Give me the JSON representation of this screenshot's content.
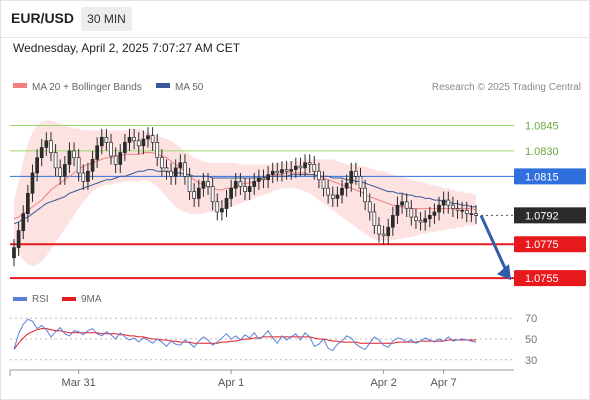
{
  "header": {
    "pair": "EUR/USD",
    "timeframe": "30 MIN",
    "timestamp": "Wednesday, April 2, 2025 7:07:27 AM CET"
  },
  "legend": {
    "items": [
      {
        "label": "MA 20 + Bollinger Bands",
        "color": "#f08080"
      },
      {
        "label": "MA 50",
        "color": "#3b5998"
      }
    ],
    "credit": "Research © 2025 Trading Central"
  },
  "chart_data": [
    {
      "type": "candlestick",
      "ylim": [
        1.0748,
        1.086
      ],
      "levels": [
        {
          "value": 1.0845,
          "label": "1.0845",
          "kind": "resistance",
          "color": "#9bd66b"
        },
        {
          "value": 1.083,
          "label": "1.0830",
          "kind": "resistance",
          "color": "#9bd66b"
        },
        {
          "value": 1.0815,
          "label": "1.0815",
          "kind": "pivot",
          "color": "#2f6fde"
        },
        {
          "value": 1.0775,
          "label": "1.0775",
          "kind": "support",
          "color": "#e8191c"
        },
        {
          "value": 1.0755,
          "label": "1.0755",
          "kind": "support",
          "color": "#e8191c"
        }
      ],
      "last_price": {
        "value": 1.0792,
        "label": "1.0792",
        "color": "#2b2b2b"
      },
      "forecast": {
        "from": 1.0792,
        "to": 1.0755,
        "color": "#2f5da8"
      },
      "close": [
        1.0773,
        1.0783,
        1.0793,
        1.0805,
        1.0817,
        1.0826,
        1.0832,
        1.0836,
        1.0829,
        1.082,
        1.0815,
        1.0822,
        1.083,
        1.0826,
        1.0817,
        1.0812,
        1.0818,
        1.0825,
        1.0833,
        1.0838,
        1.0835,
        1.0827,
        1.0822,
        1.0829,
        1.0835,
        1.0838,
        1.0836,
        1.0833,
        1.0837,
        1.0839,
        1.0835,
        1.0826,
        1.082,
        1.0818,
        1.0815,
        1.082,
        1.0823,
        1.0815,
        1.0806,
        1.0802,
        1.0808,
        1.0812,
        1.0809,
        1.08,
        1.0794,
        1.0796,
        1.0802,
        1.0808,
        1.0812,
        1.0809,
        1.0806,
        1.0809,
        1.0812,
        1.0814,
        1.0813,
        1.0816,
        1.0818,
        1.0817,
        1.0819,
        1.0818,
        1.0819,
        1.0821,
        1.082,
        1.0823,
        1.0822,
        1.0818,
        1.0813,
        1.0808,
        1.0804,
        1.0802,
        1.0804,
        1.0808,
        1.0811,
        1.0818,
        1.0815,
        1.0808,
        1.08,
        1.0794,
        1.0786,
        1.0781,
        1.078,
        1.0785,
        1.0792,
        1.0798,
        1.08,
        1.0796,
        1.0791,
        1.0789,
        1.0788,
        1.079,
        1.0792,
        1.0794,
        1.0798,
        1.0801,
        1.0798,
        1.0796,
        1.0795,
        1.0795,
        1.0793,
        1.0793,
        1.0792
      ],
      "ma50": [
        1.0787,
        1.0788,
        1.079,
        1.0791,
        1.0793,
        1.0795,
        1.0797,
        1.0799,
        1.08,
        1.0801,
        1.0802,
        1.0803,
        1.0805,
        1.0806,
        1.0807,
        1.0808,
        1.0809,
        1.081,
        1.0811,
        1.0812,
        1.0813,
        1.0813,
        1.0814,
        1.0815,
        1.0815,
        1.0816,
        1.0817,
        1.0818,
        1.0818,
        1.0819,
        1.0819,
        1.0818,
        1.0818,
        1.0818,
        1.0817,
        1.0817,
        1.0817,
        1.0816,
        1.0816,
        1.0815,
        1.0815,
        1.0815,
        1.0815,
        1.0814,
        1.0814,
        1.0814,
        1.0814,
        1.0814,
        1.0814,
        1.0814,
        1.0814,
        1.0814,
        1.0814,
        1.0814,
        1.0814,
        1.0815,
        1.0815,
        1.0815,
        1.0815,
        1.0815,
        1.0816,
        1.0816,
        1.0816,
        1.0816,
        1.0816,
        1.0816,
        1.0815,
        1.0815,
        1.0815,
        1.0814,
        1.0814,
        1.0814,
        1.0813,
        1.0813,
        1.0812,
        1.0812,
        1.0811,
        1.081,
        1.0809,
        1.0808,
        1.0807,
        1.0806,
        1.0806,
        1.0805,
        1.0805,
        1.0804,
        1.0804,
        1.0803,
        1.0803,
        1.0802,
        1.0802,
        1.0801,
        1.0801,
        1.08,
        1.08,
        1.0799,
        1.0799,
        1.0798,
        1.0798,
        1.0797,
        1.0797
      ],
      "ma20": [
        1.079,
        1.0791,
        1.0793,
        1.0795,
        1.0797,
        1.0799,
        1.0801,
        1.0804,
        1.0807,
        1.0809,
        1.0811,
        1.0813,
        1.0815,
        1.0817,
        1.0819,
        1.0821,
        1.0822,
        1.0823,
        1.0824,
        1.0825,
        1.0826,
        1.0826,
        1.0827,
        1.0827,
        1.0828,
        1.0828,
        1.0828,
        1.0828,
        1.0829,
        1.0829,
        1.0829,
        1.0828,
        1.0827,
        1.0826,
        1.0824,
        1.0822,
        1.082,
        1.0818,
        1.0815,
        1.0813,
        1.0811,
        1.081,
        1.0809,
        1.0808,
        1.0807,
        1.0807,
        1.0808,
        1.0808,
        1.0809,
        1.081,
        1.0811,
        1.0811,
        1.0812,
        1.0813,
        1.0814,
        1.0815,
        1.0815,
        1.0816,
        1.0816,
        1.0817,
        1.0817,
        1.0817,
        1.0817,
        1.0817,
        1.0816,
        1.0816,
        1.0815,
        1.0814,
        1.0813,
        1.0812,
        1.0811,
        1.081,
        1.0809,
        1.0808,
        1.0807,
        1.0806,
        1.0804,
        1.0803,
        1.0802,
        1.0801,
        1.08,
        1.0799,
        1.0798,
        1.0797,
        1.0797,
        1.0797,
        1.0796,
        1.0796,
        1.0796,
        1.0796,
        1.0796,
        1.0796,
        1.0796,
        1.0796,
        1.0796,
        1.0796,
        1.0796,
        1.0796,
        1.0796,
        1.0796,
        1.0795
      ],
      "bb_upper": [
        1.08,
        1.0812,
        1.0824,
        1.0834,
        1.0841,
        1.0845,
        1.0847,
        1.0848,
        1.0848,
        1.0847,
        1.0846,
        1.0845,
        1.0844,
        1.0843,
        1.0843,
        1.0842,
        1.0842,
        1.0842,
        1.0842,
        1.0842,
        1.0842,
        1.0842,
        1.0842,
        1.0842,
        1.0842,
        1.0843,
        1.0843,
        1.0843,
        1.0842,
        1.0841,
        1.084,
        1.0839,
        1.0838,
        1.0837,
        1.0836,
        1.0834,
        1.0832,
        1.083,
        1.0828,
        1.0826,
        1.0825,
        1.0824,
        1.0823,
        1.0823,
        1.0823,
        1.0823,
        1.0823,
        1.0823,
        1.0823,
        1.0822,
        1.0822,
        1.0822,
        1.0822,
        1.0822,
        1.0822,
        1.0822,
        1.0822,
        1.0823,
        1.0823,
        1.0823,
        1.0824,
        1.0824,
        1.0824,
        1.0825,
        1.0825,
        1.0825,
        1.0825,
        1.0825,
        1.0825,
        1.0825,
        1.0824,
        1.0823,
        1.0822,
        1.0822,
        1.0822,
        1.0821,
        1.0821,
        1.082,
        1.0819,
        1.0818,
        1.0818,
        1.0817,
        1.0816,
        1.0815,
        1.0815,
        1.0814,
        1.0813,
        1.0812,
        1.0812,
        1.0811,
        1.081,
        1.081,
        1.0809,
        1.0808,
        1.0808,
        1.0807,
        1.0806,
        1.0806,
        1.0805,
        1.0805,
        1.0804
      ],
      "bb_lower": [
        1.0774,
        1.077,
        1.0766,
        1.0763,
        1.0762,
        1.0763,
        1.0765,
        1.0768,
        1.0772,
        1.0776,
        1.078,
        1.0784,
        1.0788,
        1.0792,
        1.0796,
        1.08,
        1.0803,
        1.0806,
        1.0808,
        1.0809,
        1.081,
        1.081,
        1.0811,
        1.0811,
        1.0812,
        1.0812,
        1.0812,
        1.0812,
        1.0813,
        1.0812,
        1.0811,
        1.0809,
        1.0806,
        1.0803,
        1.08,
        1.0797,
        1.0795,
        1.0794,
        1.0793,
        1.0793,
        1.0793,
        1.0793,
        1.0794,
        1.0794,
        1.0794,
        1.0795,
        1.0796,
        1.0797,
        1.0798,
        1.0799,
        1.08,
        1.0801,
        1.0802,
        1.0803,
        1.0804,
        1.0805,
        1.0806,
        1.0807,
        1.0808,
        1.0808,
        1.0808,
        1.0808,
        1.0807,
        1.0806,
        1.0805,
        1.0803,
        1.0801,
        1.0799,
        1.0797,
        1.0795,
        1.0793,
        1.0791,
        1.0789,
        1.0787,
        1.0785,
        1.0783,
        1.0781,
        1.0779,
        1.0778,
        1.0777,
        1.0777,
        1.0777,
        1.0777,
        1.0778,
        1.0778,
        1.0779,
        1.0779,
        1.078,
        1.0781,
        1.0781,
        1.0782,
        1.0782,
        1.0783,
        1.0783,
        1.0784,
        1.0784,
        1.0785,
        1.0785,
        1.0786,
        1.0786,
        1.0786
      ],
      "x_ticks": [
        {
          "label": "Mar 31",
          "index": 14
        },
        {
          "label": "Apr 1",
          "index": 47
        },
        {
          "label": "Apr 2",
          "index": 80
        },
        {
          "label": "Apr 7",
          "index": 93
        }
      ]
    },
    {
      "type": "line",
      "legend": [
        {
          "label": "RSI",
          "color": "#5b7fd6"
        },
        {
          "label": "9MA",
          "color": "#e8191c"
        }
      ],
      "ylim": [
        25,
        75
      ],
      "y_ticks": [
        70,
        50,
        30
      ],
      "series": [
        {
          "name": "RSI",
          "values": [
            40,
            55,
            64,
            69,
            67,
            60,
            63,
            59,
            52,
            57,
            61,
            55,
            53,
            58,
            57,
            54,
            58,
            60,
            55,
            53,
            57,
            54,
            50,
            56,
            52,
            49,
            51,
            47,
            51,
            49,
            46,
            50,
            47,
            43,
            48,
            45,
            44,
            49,
            46,
            42,
            48,
            52,
            49,
            44,
            47,
            51,
            55,
            50,
            53,
            49,
            54,
            51,
            56,
            50,
            53,
            58,
            51,
            46,
            53,
            49,
            52,
            55,
            49,
            56,
            52,
            43,
            45,
            50,
            41,
            39,
            45,
            48,
            53,
            51,
            45,
            42,
            40,
            46,
            52,
            49,
            44,
            42,
            48,
            51,
            50,
            47,
            49,
            46,
            48,
            51,
            49,
            47,
            50,
            48,
            52,
            48,
            49,
            50,
            49,
            48,
            47
          ]
        },
        {
          "name": "9MA",
          "values": [
            40,
            46,
            51,
            55,
            57,
            59,
            60,
            60,
            59,
            58,
            58,
            57,
            56,
            56,
            56,
            56,
            56,
            56,
            56,
            55,
            55,
            55,
            55,
            54,
            54,
            53,
            53,
            52,
            52,
            51,
            50,
            50,
            49,
            49,
            48,
            48,
            47,
            47,
            47,
            46,
            46,
            46,
            46,
            46,
            46,
            47,
            47,
            48,
            48,
            49,
            50,
            50,
            51,
            51,
            52,
            52,
            52,
            52,
            52,
            52,
            52,
            52,
            52,
            52,
            52,
            51,
            50,
            50,
            49,
            48,
            48,
            47,
            47,
            47,
            47,
            46,
            46,
            46,
            46,
            46,
            46,
            46,
            46,
            47,
            47,
            47,
            47,
            47,
            48,
            48,
            48,
            48,
            48,
            48,
            49,
            49,
            49,
            49,
            49,
            49,
            49
          ]
        }
      ]
    }
  ]
}
